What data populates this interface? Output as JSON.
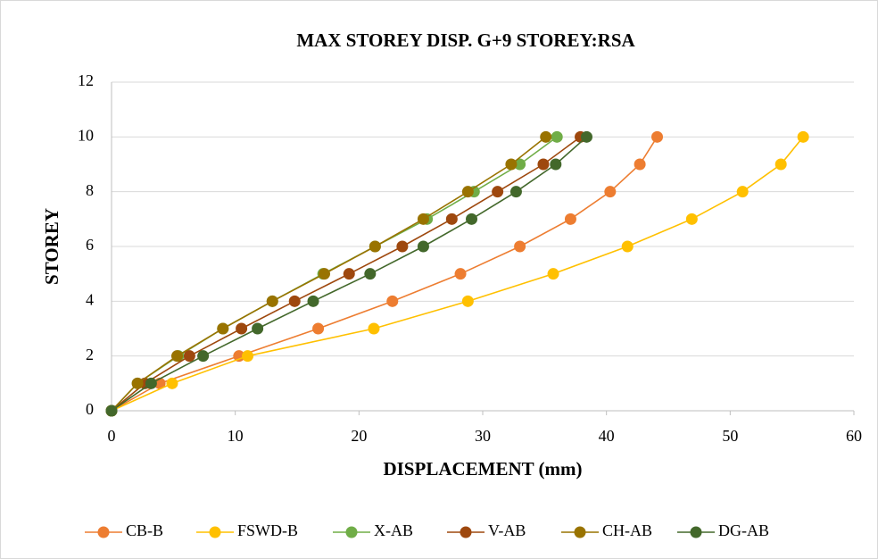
{
  "chart_data": {
    "type": "line",
    "title": "MAX STOREY DISP. G+9 STOREY:RSA",
    "x_label": "DISPLACEMENT (mm)",
    "y_label": "STOREY",
    "xlim": [
      0,
      60
    ],
    "xticks": [
      0,
      10,
      20,
      30,
      40,
      50,
      60
    ],
    "ylim": [
      0,
      12
    ],
    "yticks": [
      0,
      2,
      4,
      6,
      8,
      10,
      12
    ],
    "grid": true,
    "legend": "bottom",
    "series": [
      {
        "name": "CB-B",
        "color": "#ED7D31",
        "x": [
          0,
          3.9,
          10.3,
          16.7,
          22.7,
          28.2,
          33.0,
          37.1,
          40.3,
          42.7,
          44.1
        ],
        "values": [
          0,
          1,
          2,
          3,
          4,
          5,
          6,
          7,
          8,
          9,
          10
        ]
      },
      {
        "name": "FSWD-B",
        "color": "#FFC000",
        "x": [
          0,
          4.9,
          11.0,
          21.2,
          28.8,
          35.7,
          41.7,
          46.9,
          51.0,
          54.1,
          55.9
        ],
        "values": [
          0,
          1,
          2,
          3,
          4,
          5,
          6,
          7,
          8,
          9,
          10
        ]
      },
      {
        "name": "X-AB",
        "color": "#70AD47",
        "x": [
          0,
          2.1,
          5.4,
          9.0,
          13.0,
          17.1,
          21.3,
          25.5,
          29.3,
          33.0,
          36.0
        ],
        "values": [
          0,
          1,
          2,
          3,
          4,
          5,
          6,
          7,
          8,
          9,
          10
        ]
      },
      {
        "name": "V-AB",
        "color": "#9E480E",
        "x": [
          0,
          2.7,
          6.3,
          10.5,
          14.8,
          19.2,
          23.5,
          27.5,
          31.2,
          34.9,
          37.9
        ],
        "values": [
          0,
          1,
          2,
          3,
          4,
          5,
          6,
          7,
          8,
          9,
          10
        ]
      },
      {
        "name": "CH-AB",
        "color": "#997300",
        "x": [
          0,
          2.1,
          5.3,
          9.0,
          13.0,
          17.2,
          21.3,
          25.2,
          28.8,
          32.3,
          35.1
        ],
        "values": [
          0,
          1,
          2,
          3,
          4,
          5,
          6,
          7,
          8,
          9,
          10
        ]
      },
      {
        "name": "DG-AB",
        "color": "#43682B",
        "x": [
          0,
          3.2,
          7.4,
          11.8,
          16.3,
          20.9,
          25.2,
          29.1,
          32.7,
          35.9,
          38.4
        ],
        "values": [
          0,
          1,
          2,
          3,
          4,
          5,
          6,
          7,
          8,
          9,
          10
        ]
      }
    ]
  }
}
